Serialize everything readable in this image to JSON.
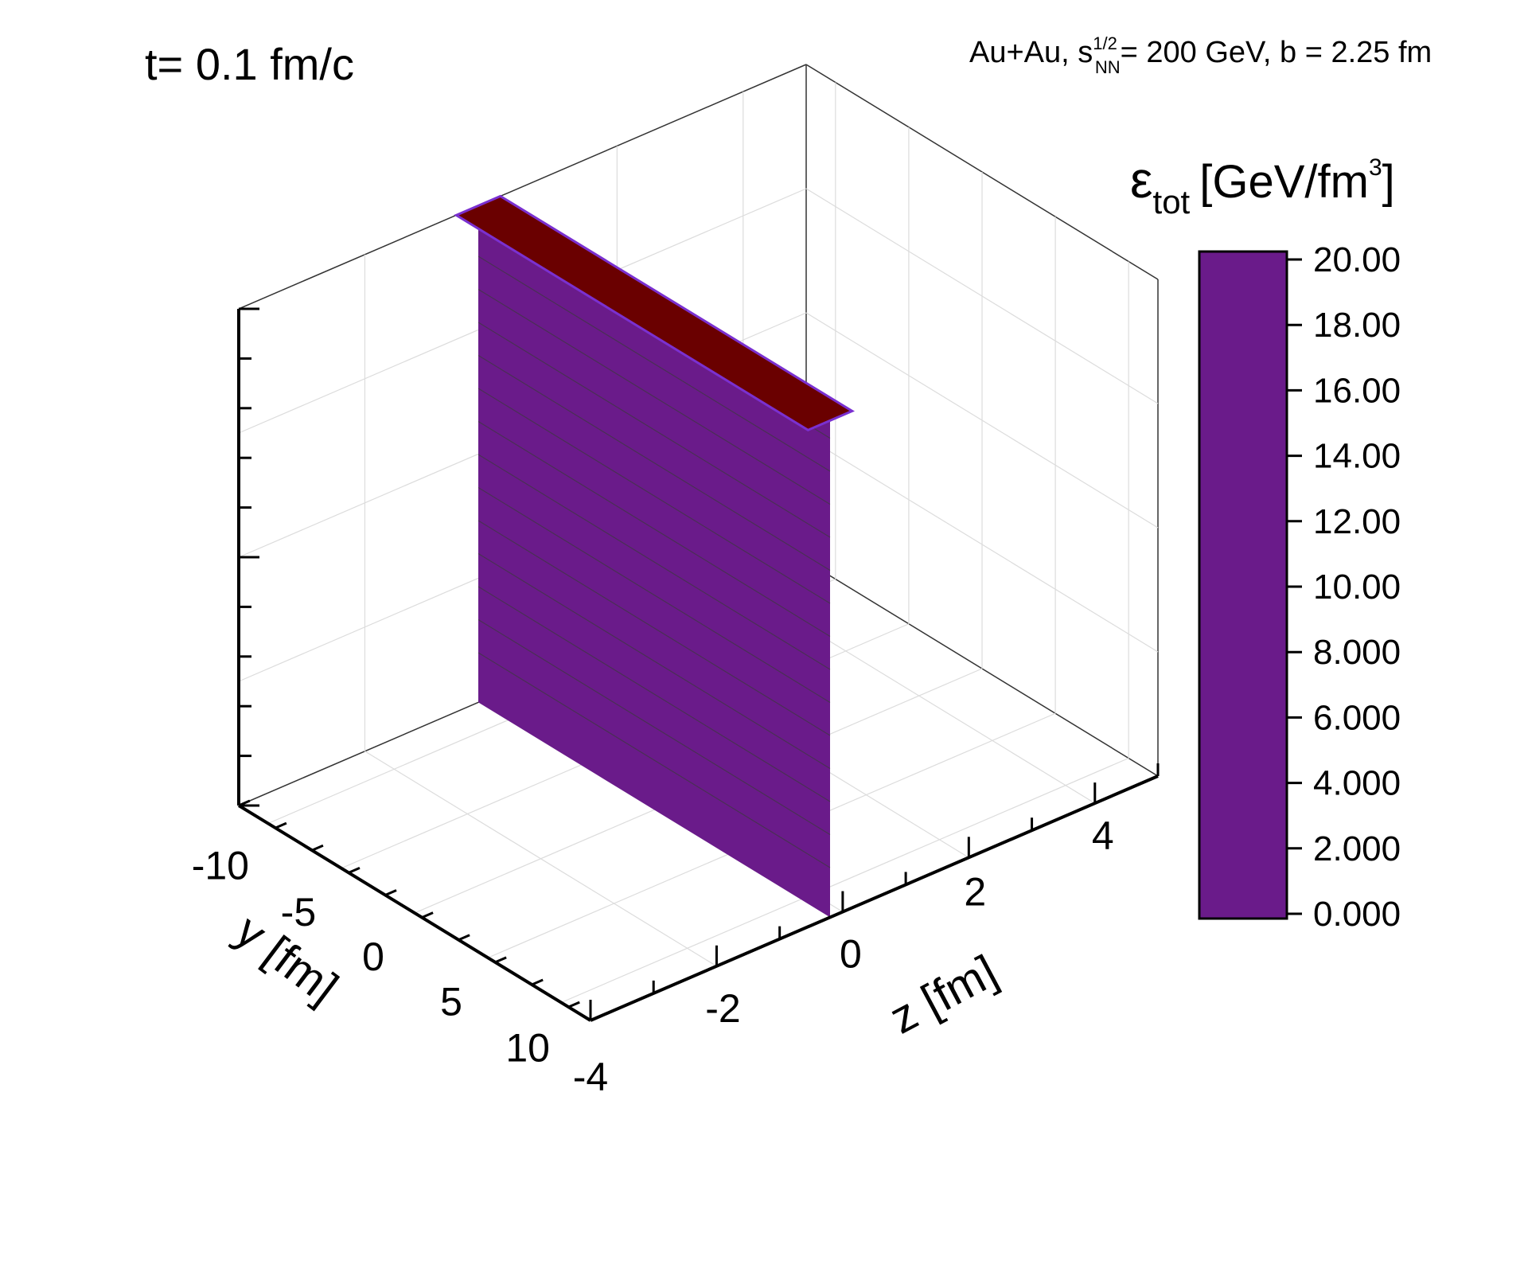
{
  "chart_data": {
    "type": "surface3d",
    "title": "t= 0.1 fm/c",
    "subtitle": {
      "prefix": "Au+Au, s",
      "sup": "1/2",
      "sub": "NN",
      "suffix": "= 200 GeV, b = 2.25 fm"
    },
    "xaxis": {
      "label": "y [fm]",
      "range": [
        -12,
        12
      ],
      "ticks": [
        -10,
        -5,
        0,
        5,
        10
      ],
      "tick_labels": [
        "-10",
        "-5",
        "0",
        "5",
        "10"
      ]
    },
    "yaxis": {
      "label": "z [fm]",
      "range": [
        -4,
        5
      ],
      "ticks": [
        -4,
        -2,
        0,
        2,
        4
      ],
      "tick_labels": [
        "-4",
        "-2",
        "0",
        "2",
        "4"
      ]
    },
    "zaxis": {
      "range": [
        0,
        20
      ]
    },
    "colorbar": {
      "label_main": "ε",
      "label_sub": "tot",
      "label_unit": "[GeV/fm",
      "label_sup": "3",
      "label_end": "]",
      "range": [
        0,
        20
      ],
      "ticks": [
        20,
        18,
        16,
        14,
        12,
        10,
        8,
        6,
        4,
        2,
        0
      ],
      "tick_labels": [
        "20.00",
        "18.00",
        "16.00",
        "14.00",
        "12.00",
        "10.00",
        "8.000",
        "6.000",
        "4.000",
        "2.000",
        "0.000"
      ]
    },
    "surface": {
      "description_of_values": "energy density along y at z≈0",
      "y": [
        -12,
        -10,
        -8,
        -6,
        -4,
        -2,
        0,
        2,
        4,
        6,
        8,
        10,
        12
      ],
      "z_center": -0.2,
      "eps": [
        20,
        20,
        20,
        20,
        20,
        20,
        20,
        20,
        20,
        20,
        20,
        20,
        20
      ]
    }
  }
}
